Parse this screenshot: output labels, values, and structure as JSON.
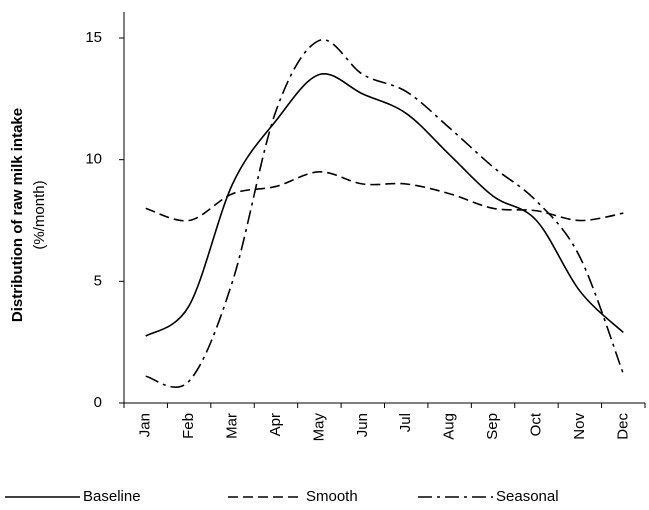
{
  "chart_data": {
    "type": "line",
    "y_label": "Distribution of raw milk intake",
    "y_label_unit": "(%/month)",
    "categories": [
      "Jan",
      "Feb",
      "Mar",
      "Apr",
      "May",
      "Jun",
      "Jul",
      "Aug",
      "Sep",
      "Oct",
      "Nov",
      "Dec"
    ],
    "series": [
      {
        "name": "Baseline",
        "color": "#000000",
        "dash": "solid",
        "values": [
          2.75,
          4.0,
          9.0,
          11.6,
          13.5,
          12.7,
          11.9,
          10.2,
          8.5,
          7.5,
          4.6,
          2.9
        ]
      },
      {
        "name": "Smooth",
        "color": "#000000",
        "dash": "dashed",
        "values": [
          8.0,
          7.5,
          8.6,
          8.9,
          9.5,
          9.0,
          9.0,
          8.6,
          8.0,
          7.9,
          7.5,
          7.8
        ]
      },
      {
        "name": "Seasonal",
        "color": "#000000",
        "dash": "dashdot",
        "values": [
          1.1,
          0.9,
          5.0,
          12.0,
          14.9,
          13.5,
          12.8,
          11.3,
          9.7,
          8.3,
          6.0,
          1.2
        ]
      }
    ],
    "ylim": [
      0,
      15
    ],
    "yticks": [
      0,
      5,
      10,
      15
    ],
    "grid": false,
    "legend": "bottom"
  }
}
